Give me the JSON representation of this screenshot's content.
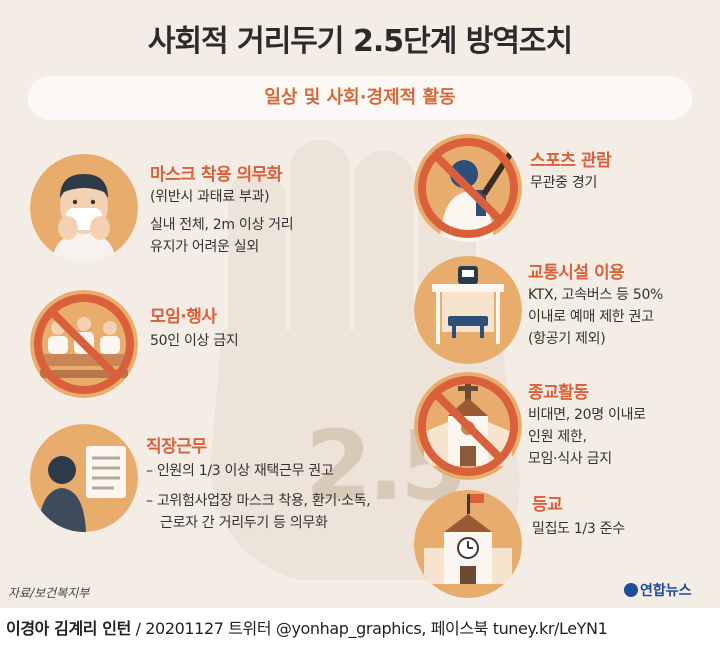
{
  "title": "사회적 거리두기 2.5단계 방역조치",
  "subtitle": "일상 및 사회·경제적 활동",
  "big_number": "2.5",
  "items": [
    {
      "heading": "마스크 착용 의무화",
      "lines": [
        "(위반시 과태료 부과)",
        "실내 전체, 2m 이상 거리",
        "유지가 어려운 실외"
      ],
      "icon": "mask-person-icon"
    },
    {
      "heading": "모임·행사",
      "lines": [
        "50인 이상 금지"
      ],
      "icon": "audience-icon"
    },
    {
      "heading": "직장근무",
      "lines": [
        "– 인원의 1/3 이상 재택근무 권고",
        "– 고위험사업장 마스크 착용, 환기·소독,",
        "근로자 간 거리두기 등 의무화"
      ],
      "icon": "office-worker-icon"
    },
    {
      "heading": "스포츠 관람",
      "lines": [
        "무관중 경기"
      ],
      "icon": "baseball-player-icon"
    },
    {
      "heading": "교통시설 이용",
      "lines": [
        "KTX, 고속버스 등 50%",
        "이내로 예매 제한 권고",
        "(항공기 제외)"
      ],
      "icon": "bus-stop-icon"
    },
    {
      "heading": "종교활동",
      "lines": [
        "비대면, 20명 이내로",
        "인원 제한,",
        "모임·식사 금지"
      ],
      "icon": "church-icon"
    },
    {
      "heading": "등교",
      "lines": [
        "밀집도 1/3 준수"
      ],
      "icon": "school-icon"
    }
  ],
  "source": "자료/보건복지부",
  "logo": "연합뉴스",
  "footer": {
    "authors": "이경아 김계리 인턴",
    "rest": "/ 20201127   트위터 @yonhap_graphics, 페이스북 tuney.kr/LeYN1"
  },
  "colors": {
    "background": "#f4ede6",
    "accent": "#d9603a",
    "circle": "#e8ac6c",
    "prohibit": "#d9603a"
  }
}
